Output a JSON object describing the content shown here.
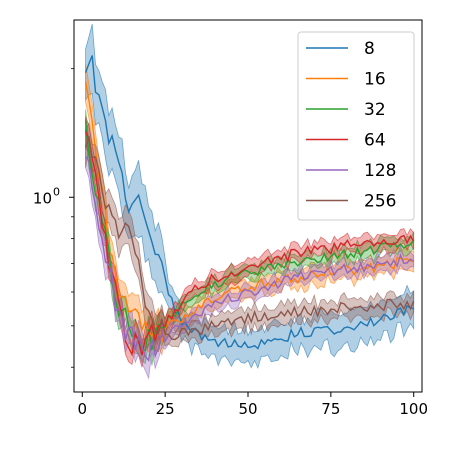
{
  "chart_data": {
    "type": "line",
    "title": "",
    "xlabel": "",
    "ylabel": "",
    "xlim": [
      -2.5,
      102.5
    ],
    "ylim": [
      0.35,
      2.6
    ],
    "yscale": "log",
    "x_ticks": [
      0,
      25,
      50,
      75,
      100
    ],
    "x_tick_labels": [
      "0",
      "25",
      "50",
      "75",
      "100"
    ],
    "y_major_ticks": [
      1.0
    ],
    "y_major_tick_labels": [
      "10",
      "0"
    ],
    "y_minor_ticks": [
      0.4,
      0.5,
      0.6,
      0.7,
      0.8,
      0.9,
      2.0
    ],
    "grid": false,
    "legend_position": "top-right",
    "series": [
      {
        "name": "8",
        "color": "#1f77b4",
        "anchors": [
          [
            1,
            1.85
          ],
          [
            3,
            2.05
          ],
          [
            5,
            1.75
          ],
          [
            8,
            1.4
          ],
          [
            11,
            1.15
          ],
          [
            14,
            1.0
          ],
          [
            17,
            0.95
          ],
          [
            20,
            0.85
          ],
          [
            23,
            0.72
          ],
          [
            26,
            0.6
          ],
          [
            30,
            0.51
          ],
          [
            35,
            0.48
          ],
          [
            40,
            0.46
          ],
          [
            45,
            0.45
          ],
          [
            50,
            0.45
          ],
          [
            55,
            0.46
          ],
          [
            60,
            0.47
          ],
          [
            65,
            0.48
          ],
          [
            70,
            0.49
          ],
          [
            75,
            0.49
          ],
          [
            80,
            0.5
          ],
          [
            85,
            0.5
          ],
          [
            90,
            0.52
          ],
          [
            95,
            0.54
          ],
          [
            100,
            0.55
          ]
        ],
        "spread": 0.09
      },
      {
        "name": "16",
        "color": "#ff7f0e",
        "anchors": [
          [
            1,
            1.8
          ],
          [
            3,
            1.6
          ],
          [
            5,
            1.2
          ],
          [
            7,
            0.9
          ],
          [
            9,
            0.7
          ],
          [
            11,
            0.6
          ],
          [
            13,
            0.55
          ],
          [
            15,
            0.53
          ],
          [
            17,
            0.5
          ],
          [
            20,
            0.5
          ],
          [
            23,
            0.49
          ],
          [
            26,
            0.5
          ],
          [
            30,
            0.52
          ],
          [
            35,
            0.55
          ],
          [
            40,
            0.58
          ],
          [
            45,
            0.6
          ],
          [
            50,
            0.62
          ],
          [
            55,
            0.63
          ],
          [
            60,
            0.64
          ],
          [
            65,
            0.65
          ],
          [
            70,
            0.66
          ],
          [
            75,
            0.67
          ],
          [
            80,
            0.68
          ],
          [
            85,
            0.68
          ],
          [
            90,
            0.69
          ],
          [
            95,
            0.7
          ],
          [
            100,
            0.7
          ]
        ],
        "spread": 0.05
      },
      {
        "name": "32",
        "color": "#2ca02c",
        "anchors": [
          [
            1,
            1.5
          ],
          [
            3,
            1.2
          ],
          [
            5,
            0.95
          ],
          [
            7,
            0.78
          ],
          [
            9,
            0.65
          ],
          [
            11,
            0.57
          ],
          [
            13,
            0.52
          ],
          [
            15,
            0.48
          ],
          [
            17,
            0.46
          ],
          [
            20,
            0.47
          ],
          [
            23,
            0.49
          ],
          [
            26,
            0.52
          ],
          [
            30,
            0.56
          ],
          [
            35,
            0.6
          ],
          [
            40,
            0.63
          ],
          [
            45,
            0.65
          ],
          [
            50,
            0.66
          ],
          [
            55,
            0.68
          ],
          [
            60,
            0.69
          ],
          [
            65,
            0.71
          ],
          [
            70,
            0.72
          ],
          [
            75,
            0.73
          ],
          [
            80,
            0.74
          ],
          [
            85,
            0.75
          ],
          [
            90,
            0.76
          ],
          [
            95,
            0.77
          ],
          [
            100,
            0.79
          ]
        ],
        "spread": 0.04
      },
      {
        "name": "64",
        "color": "#d62728",
        "anchors": [
          [
            1,
            1.45
          ],
          [
            3,
            1.2
          ],
          [
            5,
            0.95
          ],
          [
            7,
            0.8
          ],
          [
            9,
            0.68
          ],
          [
            11,
            0.58
          ],
          [
            13,
            0.5
          ],
          [
            15,
            0.46
          ],
          [
            17,
            0.45
          ],
          [
            20,
            0.46
          ],
          [
            23,
            0.48
          ],
          [
            26,
            0.52
          ],
          [
            30,
            0.57
          ],
          [
            35,
            0.62
          ],
          [
            40,
            0.65
          ],
          [
            45,
            0.67
          ],
          [
            50,
            0.69
          ],
          [
            55,
            0.71
          ],
          [
            60,
            0.72
          ],
          [
            65,
            0.74
          ],
          [
            70,
            0.75
          ],
          [
            75,
            0.76
          ],
          [
            80,
            0.77
          ],
          [
            85,
            0.78
          ],
          [
            90,
            0.79
          ],
          [
            95,
            0.8
          ],
          [
            100,
            0.81
          ]
        ],
        "spread": 0.04
      },
      {
        "name": "128",
        "color": "#9467bd",
        "anchors": [
          [
            1,
            1.3
          ],
          [
            3,
            1.1
          ],
          [
            5,
            0.9
          ],
          [
            7,
            0.75
          ],
          [
            9,
            0.62
          ],
          [
            11,
            0.55
          ],
          [
            13,
            0.5
          ],
          [
            15,
            0.47
          ],
          [
            17,
            0.45
          ],
          [
            20,
            0.45
          ],
          [
            23,
            0.46
          ],
          [
            26,
            0.48
          ],
          [
            30,
            0.5
          ],
          [
            35,
            0.53
          ],
          [
            40,
            0.56
          ],
          [
            45,
            0.58
          ],
          [
            50,
            0.6
          ],
          [
            55,
            0.62
          ],
          [
            60,
            0.63
          ],
          [
            65,
            0.65
          ],
          [
            70,
            0.66
          ],
          [
            75,
            0.67
          ],
          [
            80,
            0.68
          ],
          [
            85,
            0.69
          ],
          [
            90,
            0.7
          ],
          [
            95,
            0.71
          ],
          [
            100,
            0.72
          ]
        ],
        "spread": 0.04
      },
      {
        "name": "256",
        "color": "#8c564b",
        "anchors": [
          [
            1,
            1.4
          ],
          [
            3,
            1.3
          ],
          [
            5,
            1.15
          ],
          [
            7,
            1.0
          ],
          [
            10,
            0.9
          ],
          [
            13,
            0.82
          ],
          [
            16,
            0.75
          ],
          [
            18,
            0.65
          ],
          [
            20,
            0.55
          ],
          [
            23,
            0.5
          ],
          [
            26,
            0.47
          ],
          [
            30,
            0.48
          ],
          [
            35,
            0.49
          ],
          [
            40,
            0.5
          ],
          [
            45,
            0.51
          ],
          [
            50,
            0.52
          ],
          [
            55,
            0.53
          ],
          [
            60,
            0.53
          ],
          [
            65,
            0.54
          ],
          [
            70,
            0.54
          ],
          [
            75,
            0.55
          ],
          [
            80,
            0.55
          ],
          [
            85,
            0.55
          ],
          [
            90,
            0.56
          ],
          [
            95,
            0.56
          ],
          [
            100,
            0.56
          ]
        ],
        "spread": 0.05
      }
    ]
  }
}
